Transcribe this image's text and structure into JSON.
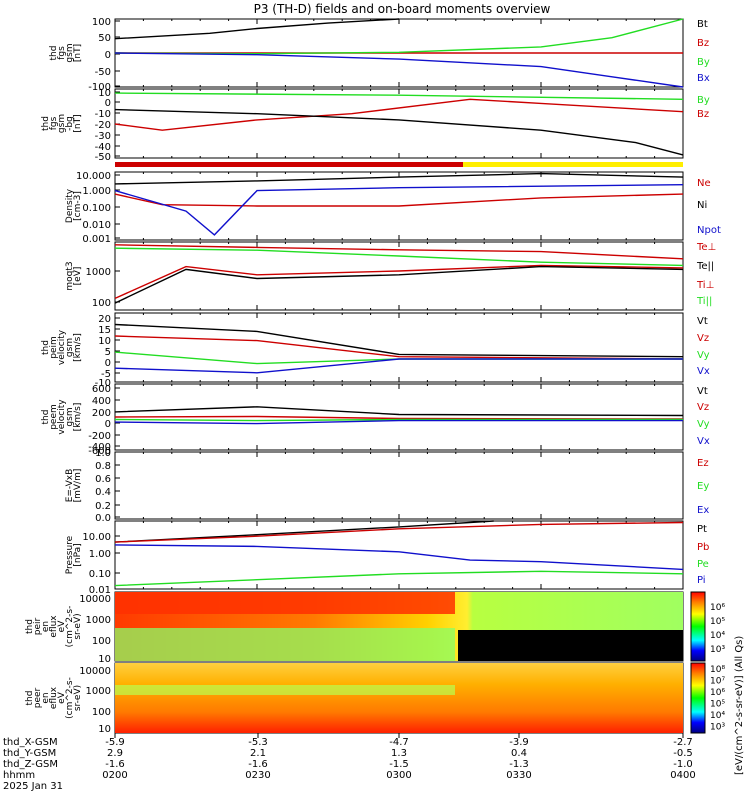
{
  "title": "P3 (TH-D) fields and on-board moments overview",
  "colors": {
    "black": "#000000",
    "red": "#cc0000",
    "green": "#22dd22",
    "blue": "#1010cc",
    "yellow": "#ffee00"
  },
  "panels": [
    {
      "ylabel": [
        "thd",
        "fgs",
        "gsm",
        "[nT]"
      ],
      "ticks": [
        "100",
        "50",
        "0",
        "-50",
        "-100"
      ],
      "legend": [
        "Bt",
        "Bz",
        "By",
        "Bx"
      ],
      "legend_colors": [
        "#000000",
        "#cc0000",
        "#22dd22",
        "#1010cc"
      ]
    },
    {
      "ylabel": [
        "thd",
        "fgs",
        "gsm",
        "-bg",
        "[nT]"
      ],
      "ticks": [
        "10",
        "0",
        "-10",
        "-20",
        "-30",
        "-40",
        "-50"
      ],
      "legend": [
        "By",
        "Bz"
      ],
      "legend_colors": [
        "#22dd22",
        "#cc0000"
      ]
    },
    {
      "ylabel": [
        "Density",
        "[cm-3]"
      ],
      "ticks": [
        "10.000",
        "1.000",
        "0.100",
        "0.010",
        "0.001"
      ],
      "legend": [
        "Ne",
        "Ni",
        "Npot"
      ],
      "legend_colors": [
        "#cc0000",
        "#000000",
        "#1010cc"
      ]
    },
    {
      "ylabel": [
        "moqt3",
        "[eV]"
      ],
      "ticks": [
        "1000",
        "100"
      ],
      "legend": [
        "Te⊥",
        "Te||",
        "Ti⊥",
        "Ti||"
      ],
      "legend_colors": [
        "#cc0000",
        "#000000",
        "#cc0000",
        "#22dd22"
      ]
    },
    {
      "ylabel": [
        "thd",
        "peim",
        "velocity",
        "gsm",
        "[km/s]"
      ],
      "ticks": [
        "20",
        "15",
        "10",
        "5",
        "0",
        "-5",
        "-10"
      ],
      "legend": [
        "Vt",
        "Vz",
        "Vy",
        "Vx"
      ],
      "legend_colors": [
        "#000000",
        "#cc0000",
        "#22dd22",
        "#1010cc"
      ]
    },
    {
      "ylabel": [
        "thd",
        "peem",
        "velocity",
        "gsm",
        "[km/s]"
      ],
      "ticks": [
        "600",
        "400",
        "200",
        "0",
        "-200",
        "-400",
        "-600"
      ],
      "legend": [
        "Vt",
        "Vz",
        "Vy",
        "Vx"
      ],
      "legend_colors": [
        "#000000",
        "#cc0000",
        "#22dd22",
        "#1010cc"
      ]
    },
    {
      "ylabel": [
        "E=-VxB",
        "[mV/m]"
      ],
      "ticks": [
        "1.0",
        "0.8",
        "0.6",
        "0.4",
        "0.2",
        "0.0"
      ],
      "legend": [
        "Ez",
        "Ey",
        "Ex"
      ],
      "legend_colors": [
        "#cc0000",
        "#22dd22",
        "#1010cc"
      ]
    },
    {
      "ylabel": [
        "Pressure",
        "[nPa]"
      ],
      "ticks": [
        "10.00",
        "1.00",
        "0.10",
        "0.01"
      ],
      "legend": [
        "Pt",
        "Pb",
        "Pe",
        "Pi"
      ],
      "legend_colors": [
        "#000000",
        "#cc0000",
        "#22dd22",
        "#1010cc"
      ]
    },
    {
      "ylabel": [
        "thd",
        "peir",
        "en",
        "eflux",
        "eV",
        "(cm^2-s-",
        "sr-eV)"
      ],
      "ticks": [
        "10000",
        "1000",
        "100",
        "10"
      ],
      "legend": [],
      "legend_colors": []
    },
    {
      "ylabel": [
        "thd",
        "peer",
        "en",
        "eflux",
        "eV",
        "(cm^2-s-",
        "sr-eV)"
      ],
      "ticks": [
        "10000",
        "1000",
        "100",
        "10"
      ],
      "legend": [],
      "legend_colors": []
    }
  ],
  "colorbars": {
    "label": "[eV/(cm^2-s-sr-eV)] (All Qs)",
    "top_ticks": [
      "10⁶",
      "10⁵",
      "10⁴",
      "10³"
    ],
    "bottom_ticks": [
      "10⁸",
      "10⁷",
      "10⁶",
      "10⁵",
      "10⁴",
      "10³"
    ]
  },
  "xaxis": {
    "row_labels": [
      "thd_X-GSM",
      "thd_Y-GSM",
      "thd_Z-GSM",
      "hhmm",
      "2025 Jan 31"
    ],
    "columns": [
      [
        "-5.9",
        "2.9",
        "-1.6",
        "0200"
      ],
      [
        "-5.3",
        "2.1",
        "-1.6",
        "0230"
      ],
      [
        "-4.7",
        "1.3",
        "-1.5",
        "0300"
      ],
      [
        "-3.9",
        "0.4",
        "-1.3",
        "0330"
      ],
      [
        "-2.7",
        "-0.5",
        "-1.0",
        "0400"
      ]
    ]
  },
  "chart_data": {
    "type": "line",
    "time_ticks": [
      "0200",
      "0230",
      "0300",
      "0330",
      "0400"
    ],
    "panels": [
      {
        "id": "fgs_gsm",
        "ylim": [
          -100,
          100
        ],
        "series": [
          {
            "name": "Bt",
            "x": [
              "0200",
              "0220",
              "0230",
              "0245",
              "0300"
            ],
            "values": [
              42,
              58,
              72,
              88,
              100
            ]
          },
          {
            "name": "Bz",
            "x": [
              "0200",
              "0300",
              "0400"
            ],
            "values": [
              0,
              0,
              0
            ]
          },
          {
            "name": "By",
            "x": [
              "0200",
              "0230",
              "0300",
              "0330",
              "0345",
              "0400"
            ],
            "values": [
              0,
              -2,
              2,
              18,
              45,
              100
            ]
          },
          {
            "name": "Bx",
            "x": [
              "0200",
              "0230",
              "0300",
              "0330",
              "0345",
              "0400"
            ],
            "values": [
              0,
              -5,
              -18,
              -40,
              -70,
              -100
            ]
          }
        ]
      },
      {
        "id": "fgs_gsm_bg",
        "ylim": [
          -55,
          12
        ],
        "series": [
          {
            "name": "By",
            "x": [
              "0200",
              "0300",
              "0400"
            ],
            "values": [
              8,
              6,
              2
            ]
          },
          {
            "name": "Bz",
            "x": [
              "0200",
              "0210",
              "0230",
              "0250",
              "0315",
              "0330",
              "0400"
            ],
            "values": [
              -22,
              -28,
              -18,
              -12,
              2,
              -2,
              -10
            ]
          },
          {
            "name": "Bt",
            "x": [
              "0200",
              "0230",
              "0300",
              "0330",
              "0350",
              "0400"
            ],
            "values": [
              -8,
              -12,
              -18,
              -28,
              -40,
              -52
            ]
          }
        ]
      },
      {
        "id": "density",
        "scale": "log",
        "ylim": [
          0.001,
          10
        ],
        "series": [
          {
            "name": "Ne",
            "x": [
              "0200",
              "0210",
              "0230",
              "0300",
              "0330",
              "0400"
            ],
            "values": [
              0.5,
              0.12,
              0.1,
              0.1,
              0.3,
              0.5
            ]
          },
          {
            "name": "Ni",
            "x": [
              "0200",
              "0230",
              "0300",
              "0330",
              "0400"
            ],
            "values": [
              2,
              3,
              5,
              8,
              5
            ]
          },
          {
            "name": "Npot",
            "x": [
              "0200",
              "0215",
              "0221",
              "0230",
              "0300",
              "0400"
            ],
            "values": [
              0.8,
              0.05,
              0.002,
              0.8,
              1.2,
              1.8
            ]
          }
        ]
      },
      {
        "id": "moqt3",
        "scale": "log",
        "ylim": [
          70,
          6000
        ],
        "series": [
          {
            "name": "Te⊥",
            "x": [
              "0200",
              "0215",
              "0230",
              "0300",
              "0330",
              "0400"
            ],
            "values": [
              150,
              1200,
              700,
              900,
              1300,
              1100
            ]
          },
          {
            "name": "Te||",
            "x": [
              "0200",
              "0215",
              "0230",
              "0300",
              "0330",
              "0400"
            ],
            "values": [
              110,
              1000,
              550,
              700,
              1200,
              1000
            ]
          },
          {
            "name": "Ti⊥",
            "x": [
              "0200",
              "0230",
              "0300",
              "0330",
              "0400"
            ],
            "values": [
              5000,
              4200,
              3600,
              3200,
              2000
            ]
          },
          {
            "name": "Ti||",
            "x": [
              "0200",
              "0230",
              "0300",
              "0330",
              "0400"
            ],
            "values": [
              4000,
              3500,
              2400,
              1600,
              1300
            ]
          }
        ]
      },
      {
        "id": "peim_velocity",
        "ylim": [
          -10,
          20
        ],
        "series": [
          {
            "name": "Vt",
            "x": [
              "0200",
              "0230",
              "0300",
              "0400"
            ],
            "values": [
              15,
              12,
              2,
              1
            ]
          },
          {
            "name": "Vz",
            "x": [
              "0200",
              "0230",
              "0300",
              "0400"
            ],
            "values": [
              10,
              8,
              1,
              0
            ]
          },
          {
            "name": "Vy",
            "x": [
              "0200",
              "0230",
              "0300",
              "0400"
            ],
            "values": [
              3,
              -2,
              0,
              0
            ]
          },
          {
            "name": "Vx",
            "x": [
              "0200",
              "0230",
              "0300",
              "0400"
            ],
            "values": [
              -4,
              -6,
              0,
              0
            ]
          }
        ]
      },
      {
        "id": "peem_velocity",
        "ylim": [
          -600,
          700
        ],
        "series": [
          {
            "name": "Vt",
            "x": [
              "0200",
              "0230",
              "0300",
              "0400"
            ],
            "values": [
              150,
              250,
              100,
              80
            ]
          },
          {
            "name": "Vz",
            "x": [
              "0200",
              "0230",
              "0300",
              "0400"
            ],
            "values": [
              50,
              60,
              20,
              10
            ]
          },
          {
            "name": "Vy",
            "x": [
              "0200",
              "0230",
              "0300",
              "0400"
            ],
            "values": [
              0,
              -20,
              0,
              0
            ]
          },
          {
            "name": "Vx",
            "x": [
              "0200",
              "0230",
              "0300",
              "0400"
            ],
            "values": [
              -50,
              -80,
              -20,
              -20
            ]
          }
        ]
      },
      {
        "id": "e_vxb",
        "ylim": [
          0,
          1
        ],
        "series": []
      },
      {
        "id": "pressure",
        "scale": "log",
        "ylim": [
          0.01,
          30
        ],
        "series": [
          {
            "name": "Pt",
            "x": [
              "0200",
              "0230",
              "0300",
              "0320"
            ],
            "values": [
              2.5,
              6,
              15,
              30
            ]
          },
          {
            "name": "Pb",
            "x": [
              "0200",
              "0230",
              "0300",
              "0330",
              "0400"
            ],
            "values": [
              2.5,
              5,
              12,
              20,
              25
            ]
          },
          {
            "name": "Pe",
            "x": [
              "0200",
              "0230",
              "0300",
              "0330",
              "0400"
            ],
            "values": [
              0.015,
              0.03,
              0.06,
              0.08,
              0.06
            ]
          },
          {
            "name": "Pi",
            "x": [
              "0200",
              "0230",
              "0300",
              "0315",
              "0330",
              "0400"
            ],
            "values": [
              1.8,
              1.5,
              0.8,
              0.3,
              0.25,
              0.1
            ]
          }
        ]
      },
      {
        "id": "peir_spectrogram",
        "type": "heatmap",
        "scale": "log",
        "ylim": [
          10,
          20000
        ]
      },
      {
        "id": "peer_spectrogram",
        "type": "heatmap",
        "scale": "log",
        "ylim": [
          10,
          20000
        ]
      }
    ]
  }
}
